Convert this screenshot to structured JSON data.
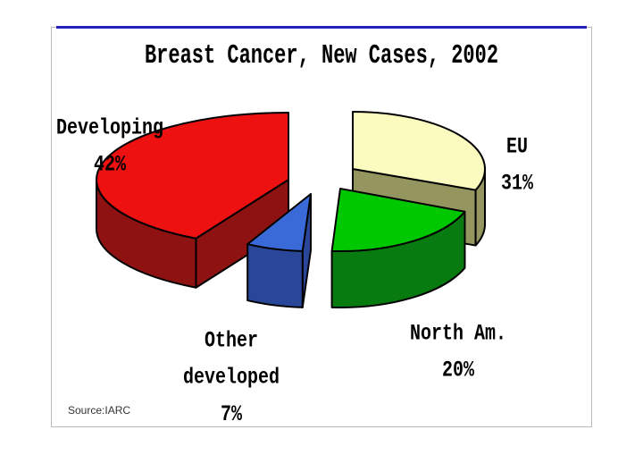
{
  "slide": {
    "title": "Breast Cancer, New Cases, 2002",
    "source_note": "Source:IARC",
    "accent_line_color": "#2222bb"
  },
  "chart_data": {
    "type": "pie",
    "style": "3d-exploded",
    "title": "Breast Cancer, New Cases, 2002",
    "unit": "%",
    "start_angle_deg": 0,
    "direction": "clockwise",
    "grid": false,
    "legend": "none (direct slice labels)",
    "source": "Source:IARC",
    "slices": [
      {
        "label": "EU",
        "value": 31,
        "pct_text": "31%",
        "label_lines": [
          "EU",
          "31%"
        ],
        "top_color": "#fbfbc0",
        "side_color": "#95955f"
      },
      {
        "label": "North Am.",
        "value": 20,
        "pct_text": "20%",
        "label_lines": [
          "North Am.",
          "20%"
        ],
        "top_color": "#00c800",
        "side_color": "#077b10"
      },
      {
        "label": "Other developed",
        "value": 7,
        "pct_text": "7%",
        "label_lines": [
          "Other",
          "developed",
          "7%"
        ],
        "top_color": "#3a6ad8",
        "side_color": "#294699"
      },
      {
        "label": "Developing",
        "value": 42,
        "pct_text": "42%",
        "label_lines": [
          "Developing",
          "42%"
        ],
        "top_color": "#ee1111",
        "side_color": "#8e1212"
      }
    ],
    "outline_color": "#000000"
  }
}
